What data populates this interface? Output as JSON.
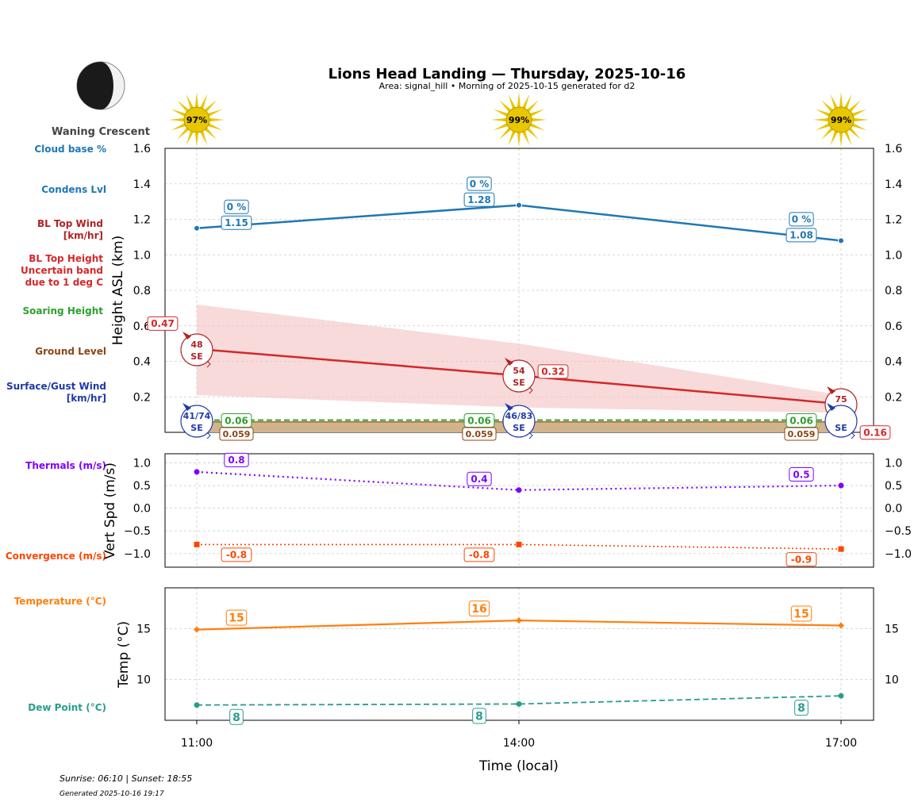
{
  "header": {
    "title": "Lions Head Landing — Thursday, 2025-10-16",
    "subtitle": "Area: signal_hill • Morning of 2025-10-15 generated for d2",
    "moon_phase": "Waning Crescent"
  },
  "side_labels": {
    "cloud_base": "Cloud base %",
    "condens": "Condens Lvl",
    "bl_wind_1": "BL Top Wind",
    "bl_wind_2": "[km/hr]",
    "bl_height_1": "BL Top Height",
    "bl_height_2": "Uncertain band",
    "bl_height_3": "due to 1 deg C",
    "soaring": "Soaring Height",
    "ground": "Ground Level",
    "surface_1": "Surface/Gust Wind",
    "surface_2": "[km/hr]",
    "thermals": "Thermals (m/s)",
    "convergence": "Convergence (m/s)",
    "temperature": "Temperature (°C)",
    "dewpoint": "Dew Point (°C)"
  },
  "colors": {
    "cloud": "#1f77b4",
    "bl_top": "#d62728",
    "bl_band": "#f4c2c2",
    "soaring": "#2ca02c",
    "ground": "#8b4513",
    "wind": "#1f3aa8",
    "bl_wind": "#b22222",
    "thermals": "#7f00ff",
    "convergence": "#ff4500",
    "temperature": "#ff7f0e",
    "dewpoint": "#2a9d8f",
    "sun": "#e8c600"
  },
  "footer": {
    "sun_times": "Sunrise: 06:10 | Sunset: 18:55",
    "generated": "Generated 2025-10-16 19:17"
  },
  "chart_data": [
    {
      "type": "line",
      "panel": "height",
      "x": [
        "11:00",
        "14:00",
        "17:00"
      ],
      "ylabel": "Height ASL (km)",
      "ylim": [
        0,
        1.6
      ],
      "yticks": [
        0.2,
        0.4,
        0.6,
        0.8,
        1.0,
        1.2,
        1.4,
        1.6
      ],
      "grid": true,
      "sun_percent": [
        "97%",
        "99%",
        "99%"
      ],
      "cloud_base_percent": [
        "0 %",
        "0 %",
        "0 %"
      ],
      "series": [
        {
          "key": "condensation",
          "values": [
            1.15,
            1.28,
            1.08
          ],
          "labels": [
            "1.15",
            "1.28",
            "1.08"
          ]
        },
        {
          "key": "bl_top",
          "values": [
            0.47,
            0.32,
            0.16
          ],
          "labels": [
            "0.47",
            "0.32",
            "0.16"
          ]
        },
        {
          "key": "bl_band_upper",
          "values": [
            0.72,
            0.5,
            0.21
          ]
        },
        {
          "key": "bl_band_lower",
          "values": [
            0.21,
            0.14,
            0.11
          ]
        },
        {
          "key": "soaring",
          "values": [
            0.06,
            0.06,
            0.06
          ],
          "labels": [
            "0.06",
            "0.06",
            "0.06"
          ]
        },
        {
          "key": "ground",
          "values": [
            0.059,
            0.059,
            0.059
          ],
          "labels": [
            "0.059",
            "0.059",
            "0.059"
          ]
        }
      ],
      "bl_top_wind": [
        {
          "speed": "48",
          "dir": "SE"
        },
        {
          "speed": "54",
          "dir": "SE"
        },
        {
          "speed": "75",
          "dir": "SE"
        }
      ],
      "surface_wind": [
        {
          "speed": "41/74",
          "dir": "SE"
        },
        {
          "speed": "46/83",
          "dir": "SE"
        },
        {
          "speed": "",
          "dir": "SE"
        }
      ]
    },
    {
      "type": "line",
      "panel": "vertical_speed",
      "x": [
        "11:00",
        "14:00",
        "17:00"
      ],
      "ylabel": "Vert Spd (m/s)",
      "ylim": [
        -1.3,
        1.2
      ],
      "yticks": [
        -1.0,
        -0.5,
        0.0,
        0.5,
        1.0
      ],
      "grid": true,
      "series": [
        {
          "key": "thermals",
          "values": [
            0.8,
            0.4,
            0.5
          ],
          "labels": [
            "0.8",
            "0.4",
            "0.5"
          ]
        },
        {
          "key": "convergence",
          "values": [
            -0.8,
            -0.8,
            -0.9
          ],
          "labels": [
            "-0.8",
            "-0.8",
            "-0.9"
          ]
        }
      ]
    },
    {
      "type": "line",
      "panel": "temperature",
      "x": [
        "11:00",
        "14:00",
        "17:00"
      ],
      "xlabel": "Time (local)",
      "ylabel": "Temp (°C)",
      "ylim": [
        6,
        19
      ],
      "yticks": [
        10,
        15
      ],
      "grid": true,
      "series": [
        {
          "key": "temperature",
          "values": [
            14.9,
            15.8,
            15.3
          ],
          "labels": [
            "15",
            "16",
            "15"
          ]
        },
        {
          "key": "dewpoint",
          "values": [
            7.5,
            7.6,
            8.4
          ],
          "labels": [
            "8",
            "8",
            "8"
          ]
        }
      ]
    }
  ]
}
